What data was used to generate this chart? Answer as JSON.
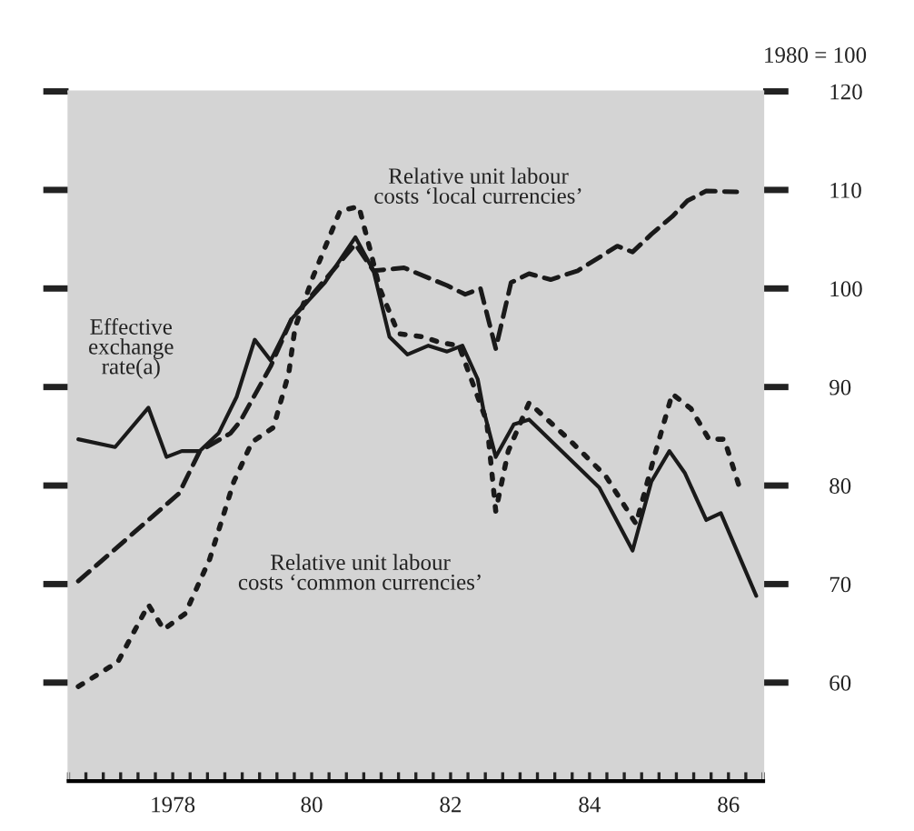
{
  "chart_data": {
    "type": "line",
    "ylabel": "1980 = 100",
    "xlim": [
      1976.5,
      1986.5
    ],
    "ylim": [
      50,
      120
    ],
    "yticks": [
      60,
      70,
      80,
      90,
      100,
      110,
      120
    ],
    "xticks": [
      {
        "value": 1976.5,
        "label": null
      },
      {
        "value": 1976.75,
        "label": null
      },
      {
        "value": 1977,
        "label": null
      },
      {
        "value": 1977.25,
        "label": null
      },
      {
        "value": 1977.5,
        "label": null
      },
      {
        "value": 1977.75,
        "label": null
      },
      {
        "value": 1978,
        "label": "1978"
      },
      {
        "value": 1978.25,
        "label": null
      },
      {
        "value": 1978.5,
        "label": null
      },
      {
        "value": 1978.75,
        "label": null
      },
      {
        "value": 1979,
        "label": null
      },
      {
        "value": 1979.25,
        "label": null
      },
      {
        "value": 1979.5,
        "label": null
      },
      {
        "value": 1979.75,
        "label": null
      },
      {
        "value": 1980,
        "label": "80"
      },
      {
        "value": 1980.25,
        "label": null
      },
      {
        "value": 1980.5,
        "label": null
      },
      {
        "value": 1980.75,
        "label": null
      },
      {
        "value": 1981,
        "label": null
      },
      {
        "value": 1981.25,
        "label": null
      },
      {
        "value": 1981.5,
        "label": null
      },
      {
        "value": 1981.75,
        "label": null
      },
      {
        "value": 1982,
        "label": "82"
      },
      {
        "value": 1982.25,
        "label": null
      },
      {
        "value": 1982.5,
        "label": null
      },
      {
        "value": 1982.75,
        "label": null
      },
      {
        "value": 1983,
        "label": null
      },
      {
        "value": 1983.25,
        "label": null
      },
      {
        "value": 1983.5,
        "label": null
      },
      {
        "value": 1983.75,
        "label": null
      },
      {
        "value": 1984,
        "label": "84"
      },
      {
        "value": 1984.25,
        "label": null
      },
      {
        "value": 1984.5,
        "label": null
      },
      {
        "value": 1984.75,
        "label": null
      },
      {
        "value": 1985,
        "label": null
      },
      {
        "value": 1985.25,
        "label": null
      },
      {
        "value": 1985.5,
        "label": null
      },
      {
        "value": 1985.75,
        "label": null
      },
      {
        "value": 1986,
        "label": "86"
      },
      {
        "value": 1986.25,
        "label": null
      },
      {
        "value": 1986.5,
        "label": null
      }
    ],
    "grid": false,
    "legend": false,
    "series": [
      {
        "color": "#1a1a1a",
        "line_style": "solid",
        "x": [
          1976.64,
          1977.17,
          1977.65,
          1977.91,
          1978.13,
          1978.39,
          1978.66,
          1978.92,
          1979.18,
          1979.41,
          1979.71,
          1980.19,
          1980.63,
          1980.89,
          1981.12,
          1981.38,
          1981.68,
          1981.95,
          1982.17,
          1982.39,
          1982.47,
          1982.65,
          1982.91,
          1983.13,
          1984.14,
          1984.62,
          1984.89,
          1985.15,
          1985.37,
          1985.68,
          1985.89,
          1986.4
        ],
        "values": [
          84.7,
          83.9,
          87.9,
          82.9,
          83.5,
          83.5,
          85.3,
          89.0,
          94.8,
          92.7,
          96.9,
          100.6,
          105.2,
          101.8,
          95.1,
          93.3,
          94.2,
          93.6,
          94.2,
          90.8,
          87.8,
          82.9,
          86.2,
          86.7,
          79.8,
          73.4,
          80.4,
          83.5,
          81.3,
          76.5,
          77.2,
          68.8
        ]
      },
      {
        "color": "#1a1a1a",
        "line_style": "dashed",
        "x": [
          1976.64,
          1978.09,
          1978.39,
          1978.83,
          1978.97,
          1979.41,
          1979.71,
          1980.63,
          1980.89,
          1981.33,
          1981.95,
          1982.21,
          1982.43,
          1982.65,
          1982.87,
          1983.13,
          1983.44,
          1983.83,
          1984.4,
          1984.62,
          1984.89,
          1985.19,
          1985.41,
          1985.68,
          1986.12
        ],
        "values": [
          70.3,
          79.2,
          83.5,
          85.3,
          86.5,
          92.1,
          96.9,
          104.5,
          101.8,
          102.1,
          100.3,
          99.4,
          100.0,
          93.9,
          100.6,
          101.5,
          100.9,
          101.8,
          104.3,
          103.7,
          105.5,
          107.3,
          108.9,
          109.9,
          109.8
        ]
      },
      {
        "color": "#1a1a1a",
        "line_style": "dotted",
        "x": [
          1976.64,
          1977.21,
          1977.65,
          1977.87,
          1978.18,
          1978.53,
          1978.88,
          1979.14,
          1979.45,
          1979.67,
          1979.76,
          1980.02,
          1980.41,
          1980.68,
          1980.85,
          1980.98,
          1981.25,
          1981.6,
          1981.86,
          1982.12,
          1982.52,
          1982.65,
          1982.83,
          1983.13,
          1983.7,
          1984.23,
          1984.67,
          1984.93,
          1985.19,
          1985.46,
          1985.72,
          1985.94,
          1986.16
        ],
        "values": [
          59.6,
          62.1,
          67.9,
          65.4,
          67.0,
          72.5,
          80.4,
          84.4,
          85.9,
          91.4,
          96.0,
          101.2,
          107.9,
          108.3,
          103.7,
          100.0,
          95.4,
          95.1,
          94.5,
          94.2,
          86.5,
          77.4,
          83.5,
          88.4,
          84.7,
          81.0,
          76.1,
          82.9,
          89.3,
          87.8,
          84.7,
          84.7,
          79.8
        ]
      }
    ],
    "annotations": [
      "Relative unit labour\ncosts ‘local currencies’",
      "Effective\nexchange\nrate(a)",
      "Relative unit labour\ncosts ‘common currencies’"
    ]
  }
}
